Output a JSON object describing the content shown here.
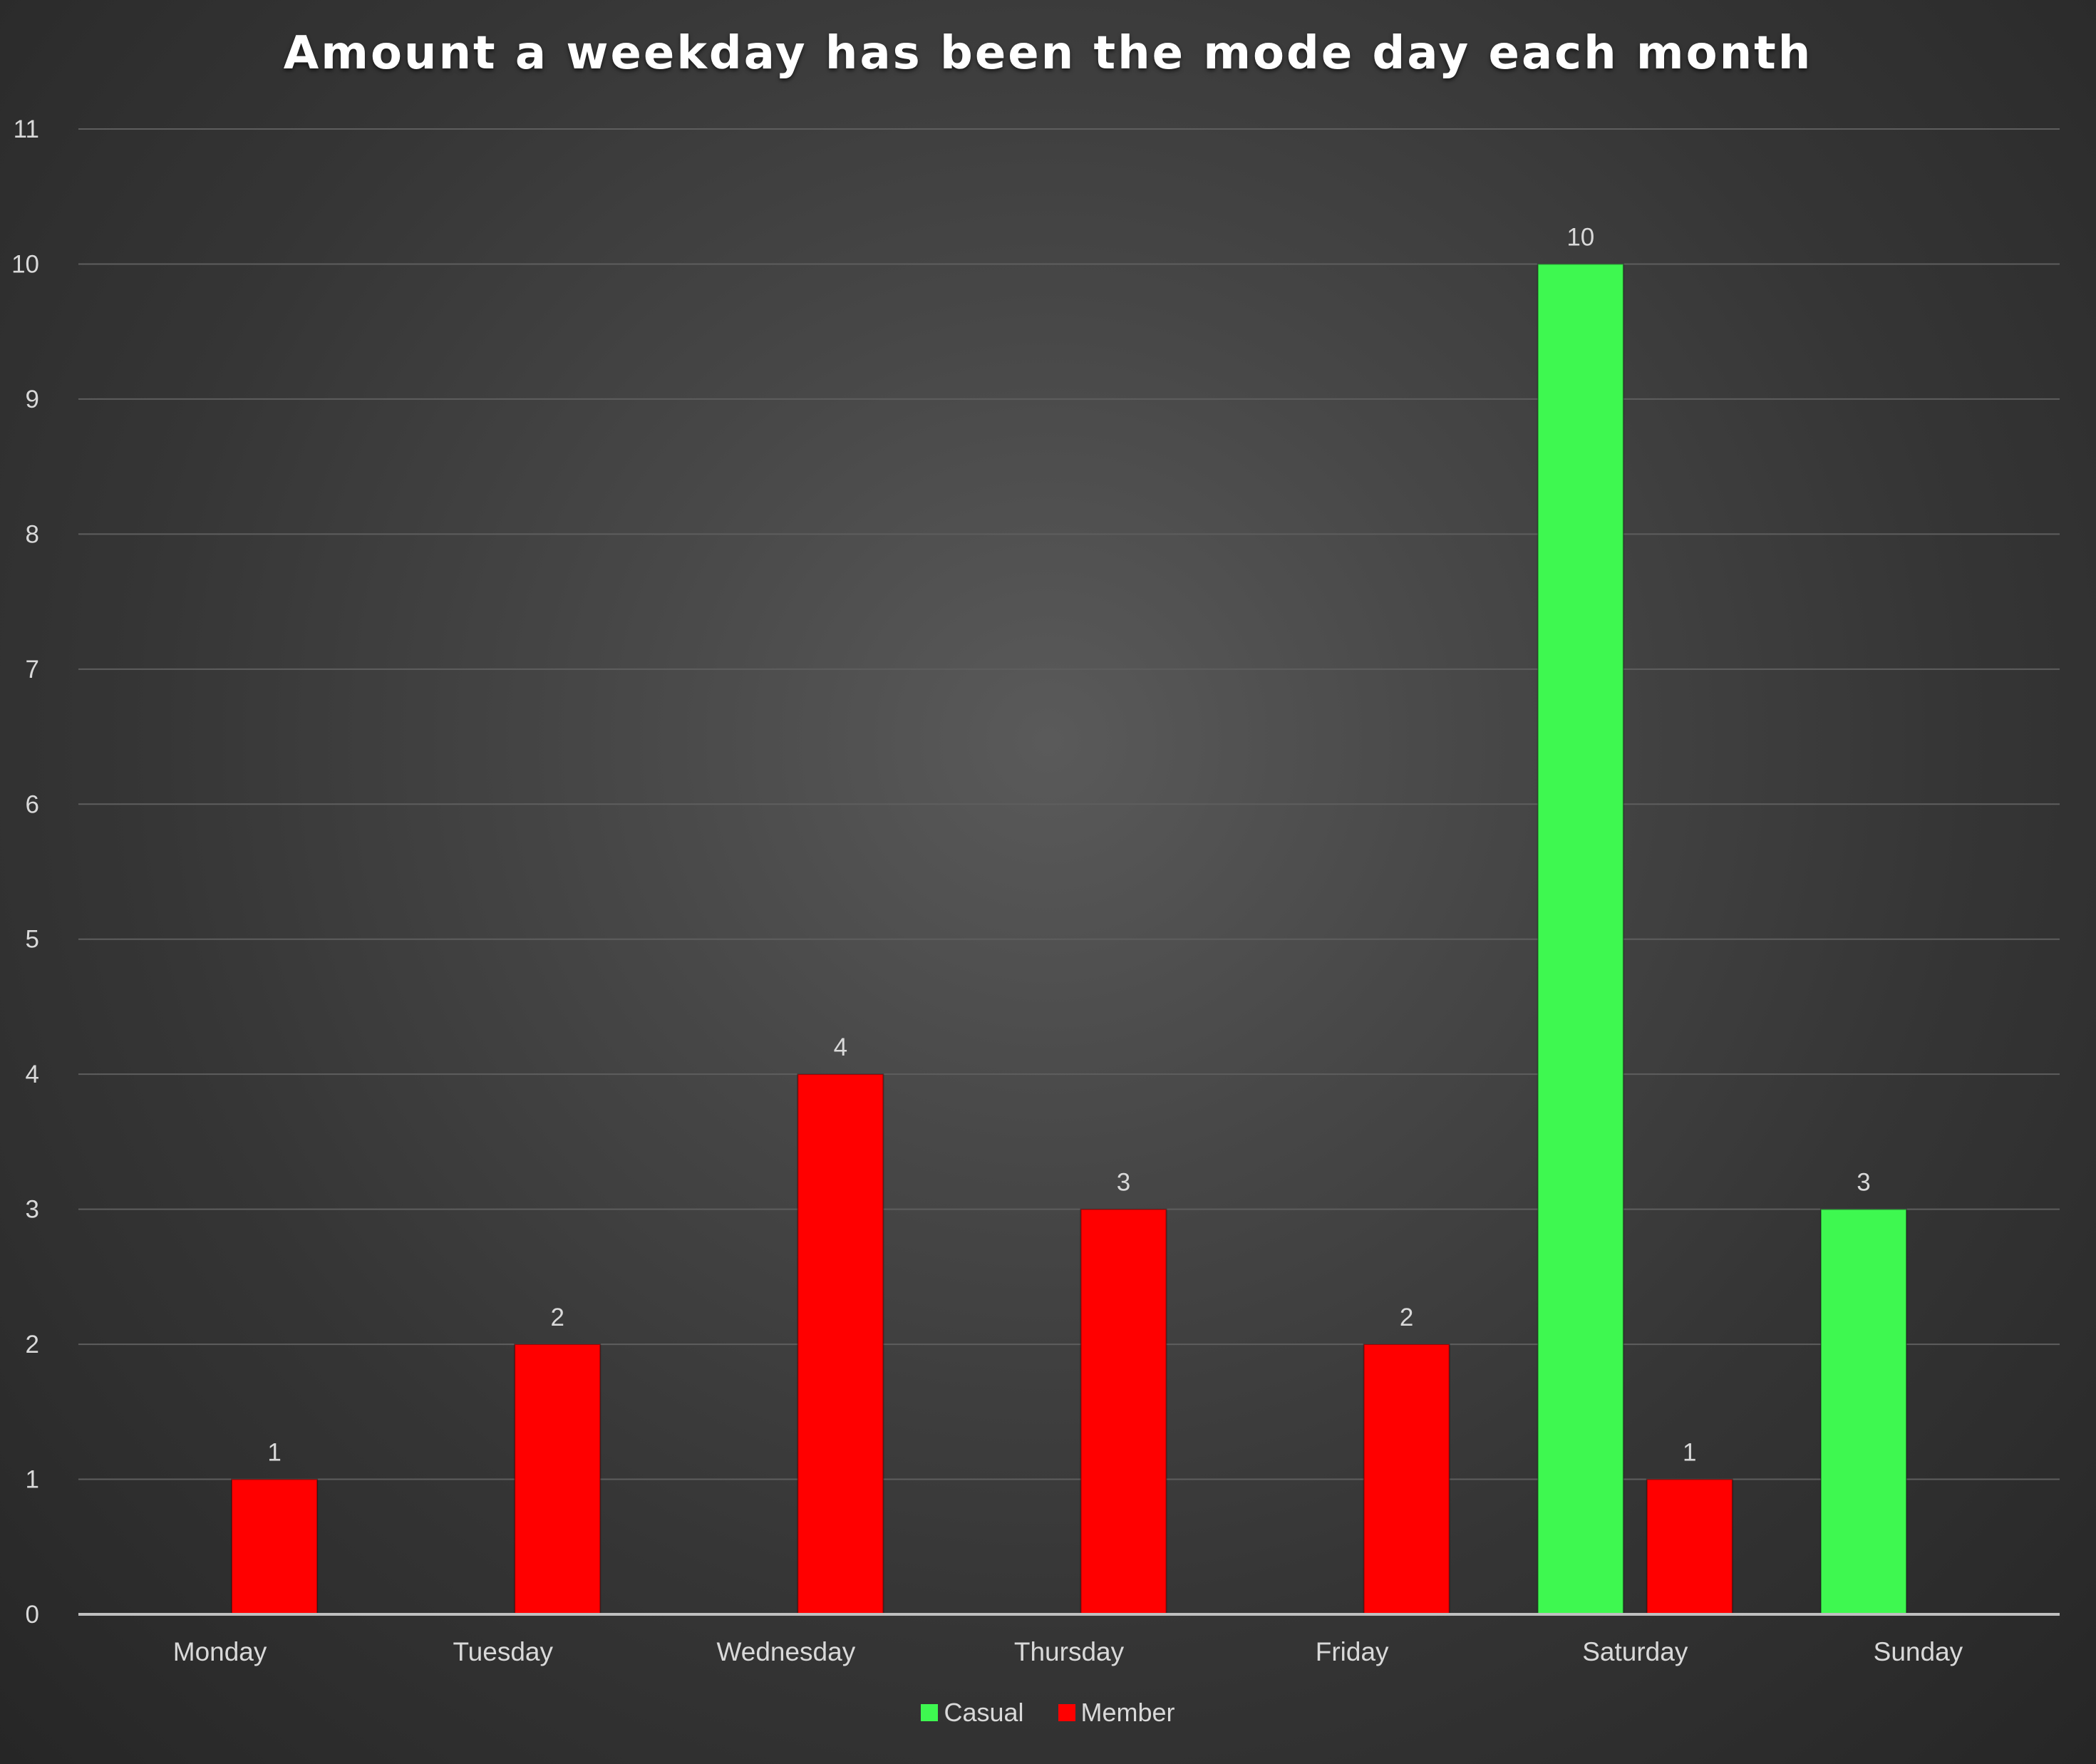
{
  "chart_data": {
    "type": "bar",
    "title": "Amount a weekday has been the mode day each month",
    "xlabel": "",
    "ylabel": "",
    "categories": [
      "Monday",
      "Tuesday",
      "Wednesday",
      "Thursday",
      "Friday",
      "Saturday",
      "Sunday"
    ],
    "series": [
      {
        "name": "Casual",
        "color": "#3ef850",
        "values": [
          null,
          null,
          null,
          null,
          null,
          10,
          3
        ]
      },
      {
        "name": "Member",
        "color": "#ff0000",
        "values": [
          1,
          2,
          4,
          3,
          2,
          1,
          null
        ]
      }
    ],
    "ylim": [
      0,
      11
    ],
    "yticks": [
      "0",
      "1",
      "2",
      "3",
      "4",
      "5",
      "6",
      "7",
      "8",
      "9",
      "10",
      "11"
    ],
    "grid": true,
    "legend_position": "bottom",
    "data_labels": true
  }
}
